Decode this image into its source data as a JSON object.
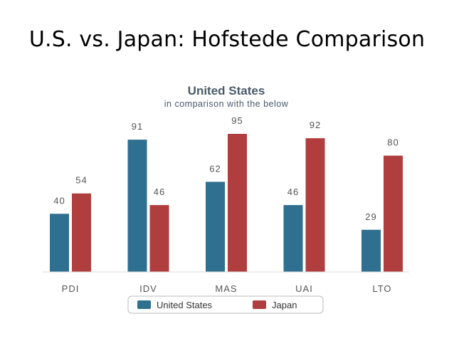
{
  "slide": {
    "title": "U.S. vs. Japan: Hofstede Comparison"
  },
  "chart_data": {
    "type": "bar",
    "title": "United States",
    "subtitle": "in comparison with the below",
    "categories": [
      "PDI",
      "IDV",
      "MAS",
      "UAI",
      "LTO"
    ],
    "series": [
      {
        "name": "United States",
        "values": [
          40,
          91,
          62,
          46,
          29
        ],
        "color": "#2f6f8f"
      },
      {
        "name": "Japan",
        "values": [
          54,
          46,
          95,
          92,
          80
        ],
        "color": "#b03e3e"
      }
    ],
    "ylim": [
      0,
      100
    ],
    "grid": false,
    "legend": "bottom"
  }
}
